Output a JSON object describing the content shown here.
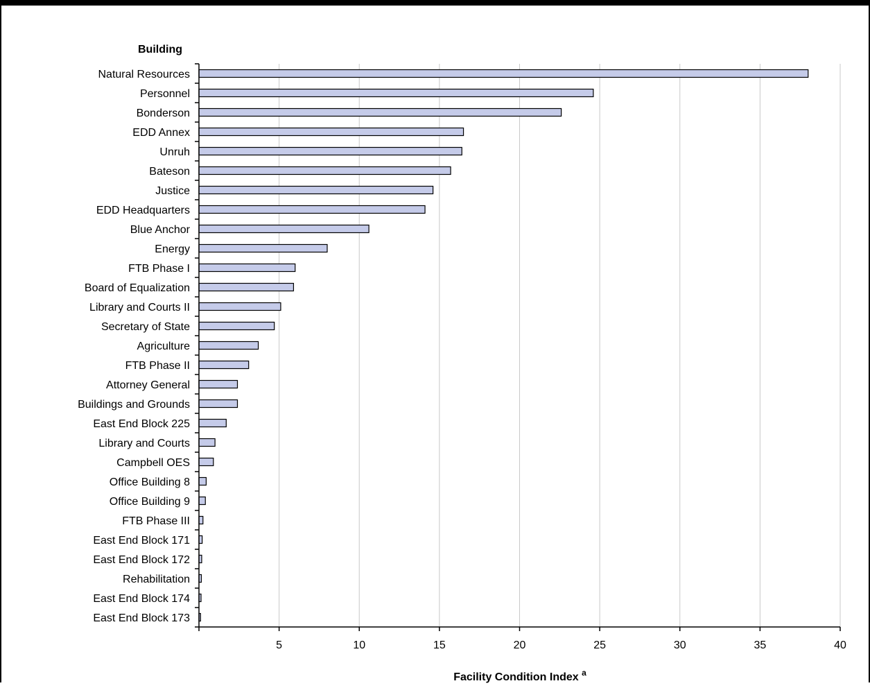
{
  "chart_data": {
    "type": "bar",
    "orientation": "horizontal",
    "title": "",
    "ylabel": "Building",
    "xlabel": "Facility Condition Index",
    "xlabel_superscript": "a",
    "xlim": [
      0,
      40
    ],
    "xticks": [
      5,
      10,
      15,
      20,
      25,
      30,
      35,
      40
    ],
    "grid": "vertical",
    "colors": {
      "bar_fill": "#c5cbe9",
      "bar_stroke": "#000000",
      "grid": "#c8c8c8"
    },
    "categories": [
      "Natural Resources",
      "Personnel",
      "Bonderson",
      "EDD Annex",
      "Unruh",
      "Bateson",
      "Justice",
      "EDD Headquarters",
      "Blue Anchor",
      "Energy",
      "FTB Phase I",
      "Board of Equalization",
      "Library and Courts II",
      "Secretary of State",
      "Agriculture",
      "FTB Phase II",
      "Attorney General",
      "Buildings and Grounds",
      "East End Block 225",
      "Library and Courts",
      "Campbell OES",
      "Office Building 8",
      "Office Building 9",
      "FTB Phase III",
      "East End Block 171",
      "East End Block 172",
      "Rehabilitation",
      "East End Block 174",
      "East End Block 173"
    ],
    "values": [
      38.0,
      24.6,
      22.6,
      16.5,
      16.4,
      15.7,
      14.6,
      14.1,
      10.6,
      8.0,
      6.0,
      5.9,
      5.1,
      4.7,
      3.7,
      3.1,
      2.4,
      2.4,
      1.7,
      1.0,
      0.9,
      0.45,
      0.4,
      0.25,
      0.2,
      0.17,
      0.15,
      0.13,
      0.1
    ]
  }
}
